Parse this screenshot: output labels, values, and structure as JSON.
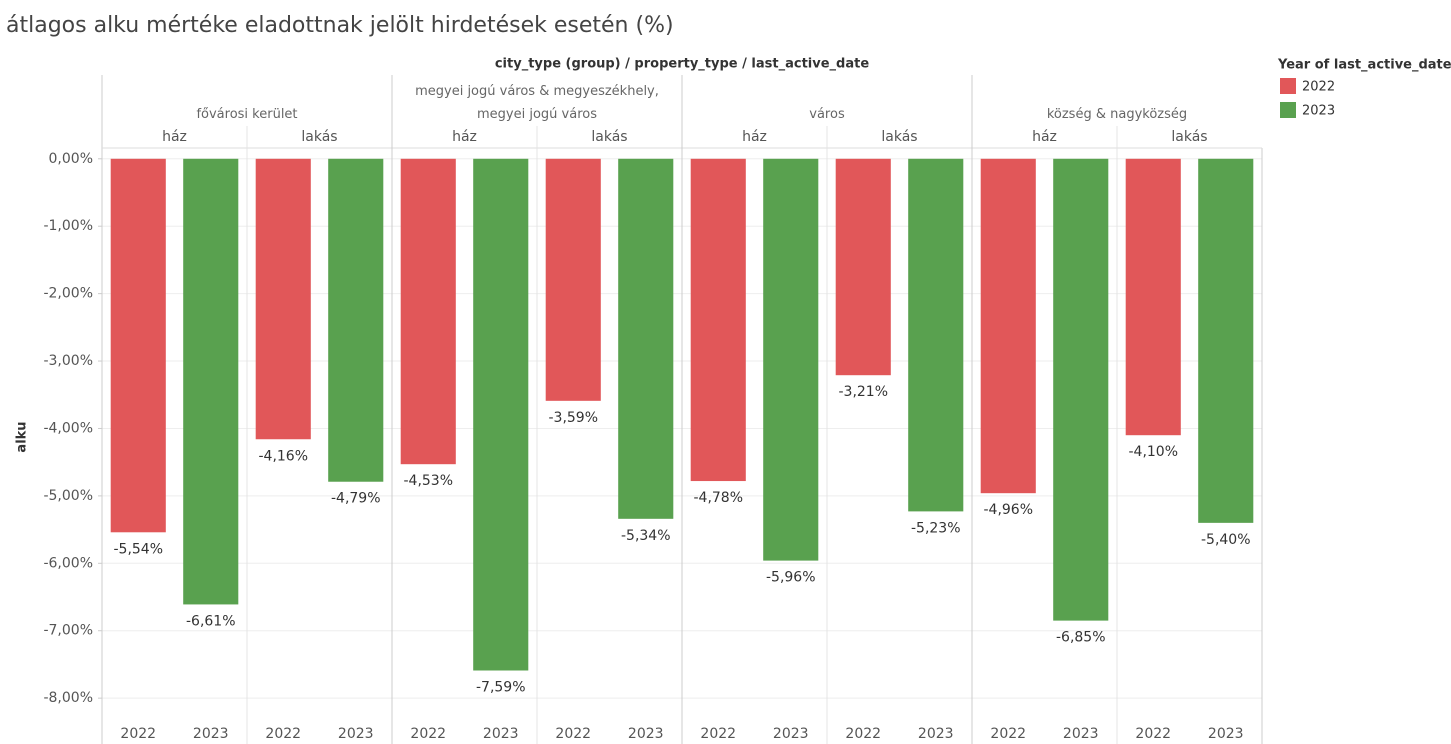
{
  "chart_data": {
    "type": "bar",
    "title": "átlagos alku mértéke eladottnak jelölt hirdetések esetén (%)",
    "header": "city_type (group) / property_type / last_active_date",
    "y_label": "alku",
    "legend_title": "Year of last_active_date",
    "legend_position": "right",
    "groups": [
      "fővárosi kerület",
      "megyei jogú város & megyeszékhely, megyei jogú város",
      "város",
      "község & nagyközség"
    ],
    "property_types": [
      "ház",
      "lakás"
    ],
    "series": [
      {
        "name": "2022",
        "color": "#e15759",
        "values": [
          -5.54,
          -4.16,
          -4.53,
          -3.59,
          -4.78,
          -3.21,
          -4.96,
          -4.1
        ],
        "value_labels": [
          "-5,54%",
          "-4,16%",
          "-4,53%",
          "-3,59%",
          "-4,78%",
          "-3,21%",
          "-4,96%",
          "-4,10%"
        ]
      },
      {
        "name": "2023",
        "color": "#59a14f",
        "values": [
          -6.61,
          -4.79,
          -7.59,
          -5.34,
          -5.96,
          -5.23,
          -6.85,
          -5.4
        ],
        "value_labels": [
          "-6,61%",
          "-4,79%",
          "-7,59%",
          "-5,34%",
          "-5,96%",
          "-5,23%",
          "-6,85%",
          "-5,40%"
        ]
      }
    ],
    "ylim": [
      -8.25,
      0.16
    ],
    "yticks": [
      {
        "value": 0,
        "label": "0,00%"
      },
      {
        "value": -1,
        "label": "-1,00%"
      },
      {
        "value": -2,
        "label": "-2,00%"
      },
      {
        "value": -3,
        "label": "-3,00%"
      },
      {
        "value": -4,
        "label": "-4,00%"
      },
      {
        "value": -5,
        "label": "-5,00%"
      },
      {
        "value": -6,
        "label": "-6,00%"
      },
      {
        "value": -7,
        "label": "-7,00%"
      },
      {
        "value": -8,
        "label": "-8,00%"
      }
    ],
    "grid": true
  }
}
